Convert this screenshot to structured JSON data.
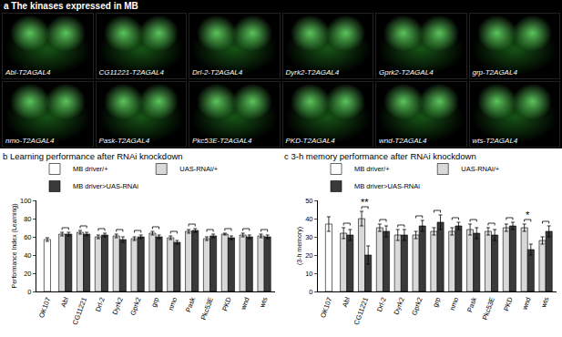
{
  "panel_a": {
    "title": "a The kinases expressed in MB",
    "images": [
      "Abl-T2AGAL4",
      "CG11221-T2AGAL4",
      "Drl-2-T2AGAL4",
      "Dyrk2-T2AGAL4",
      "Gprk2-T2AGAL4",
      "grp-T2AGAL4",
      "nmo-T2AGAL4",
      "Pask-T2AGAL4",
      "Pkc53E-T2AGAL4",
      "PKD-T2AGAL4",
      "wnd-T2AGAL4",
      "wts-T2AGAL4"
    ]
  },
  "chart_data": [
    {
      "type": "bar",
      "title": "b Learning performance after RNAi knockdown",
      "y_label": "Performance Index (Learning)",
      "categories": [
        "OK107",
        "Abl",
        "CG11221",
        "Drl-2",
        "Dyrk2",
        "Gprk2",
        "grp",
        "nmo",
        "Pask",
        "Pkc53E",
        "PKD",
        "wnd",
        "wts"
      ],
      "series": [
        {
          "name": "MB driver/+",
          "color": "#ffffff",
          "values": [
            57,
            null,
            null,
            null,
            null,
            null,
            null,
            null,
            null,
            null,
            null,
            null,
            null
          ],
          "errors": [
            2,
            null,
            null,
            null,
            null,
            null,
            null,
            null,
            null,
            null,
            null,
            null,
            null
          ]
        },
        {
          "name": "UAS-RNAi/+",
          "color": "#d9d9d9",
          "values": [
            null,
            63,
            65,
            60,
            61,
            58,
            64,
            59,
            66,
            58,
            63,
            62,
            61
          ],
          "errors": [
            null,
            2,
            2,
            2,
            2,
            2,
            2,
            2,
            2,
            2,
            1,
            2,
            2
          ]
        },
        {
          "name": "MB driver>UAS-RNAi",
          "color": "#3a3a3a",
          "values": [
            null,
            63,
            63,
            62,
            57,
            60,
            60,
            54,
            67,
            61,
            59,
            60,
            60
          ],
          "errors": [
            null,
            2,
            2,
            2,
            3,
            2,
            2,
            2,
            2,
            2,
            2,
            2,
            2
          ]
        }
      ],
      "ylim": [
        0,
        100
      ],
      "yticks": [
        0,
        20,
        40,
        60,
        80,
        100
      ],
      "legend": "top",
      "grid": false,
      "annotations": []
    },
    {
      "type": "bar",
      "title": "c 3-h memory performance after RNAi knockdown",
      "y_label": "(3-h memory)",
      "categories": [
        "OK107",
        "Abl",
        "CG11221",
        "Drl-2",
        "Dyrk2",
        "Gprk2",
        "grp",
        "nmo",
        "Pask",
        "Pkc53E",
        "PKD",
        "wnd",
        "wts"
      ],
      "series": [
        {
          "name": "MB driver/+",
          "color": "#ffffff",
          "values": [
            37,
            null,
            null,
            null,
            null,
            null,
            null,
            null,
            null,
            null,
            null,
            null,
            null
          ],
          "errors": [
            4,
            null,
            null,
            null,
            null,
            null,
            null,
            null,
            null,
            null,
            null,
            null,
            null
          ]
        },
        {
          "name": "UAS-RNAi/+",
          "color": "#d9d9d9",
          "values": [
            null,
            32,
            40,
            35,
            31,
            31,
            33,
            33,
            34,
            33,
            35,
            35,
            28
          ],
          "errors": [
            null,
            3,
            4,
            2,
            3,
            2,
            2,
            2,
            3,
            2,
            2,
            2,
            2
          ]
        },
        {
          "name": "MB driver>UAS-RNAi",
          "color": "#3a3a3a",
          "values": [
            null,
            31,
            20,
            33,
            31,
            36,
            38,
            36,
            32,
            31,
            36,
            23,
            33
          ],
          "errors": [
            null,
            3,
            5,
            3,
            3,
            3,
            4,
            2,
            3,
            3,
            2,
            3,
            3
          ]
        }
      ],
      "ylim": [
        0,
        50
      ],
      "yticks": [
        0,
        10,
        20,
        30,
        40,
        50
      ],
      "legend": "top",
      "grid": false,
      "annotations": [
        {
          "category": "CG11221",
          "text": "**"
        },
        {
          "category": "wnd",
          "text": "*"
        }
      ]
    }
  ]
}
